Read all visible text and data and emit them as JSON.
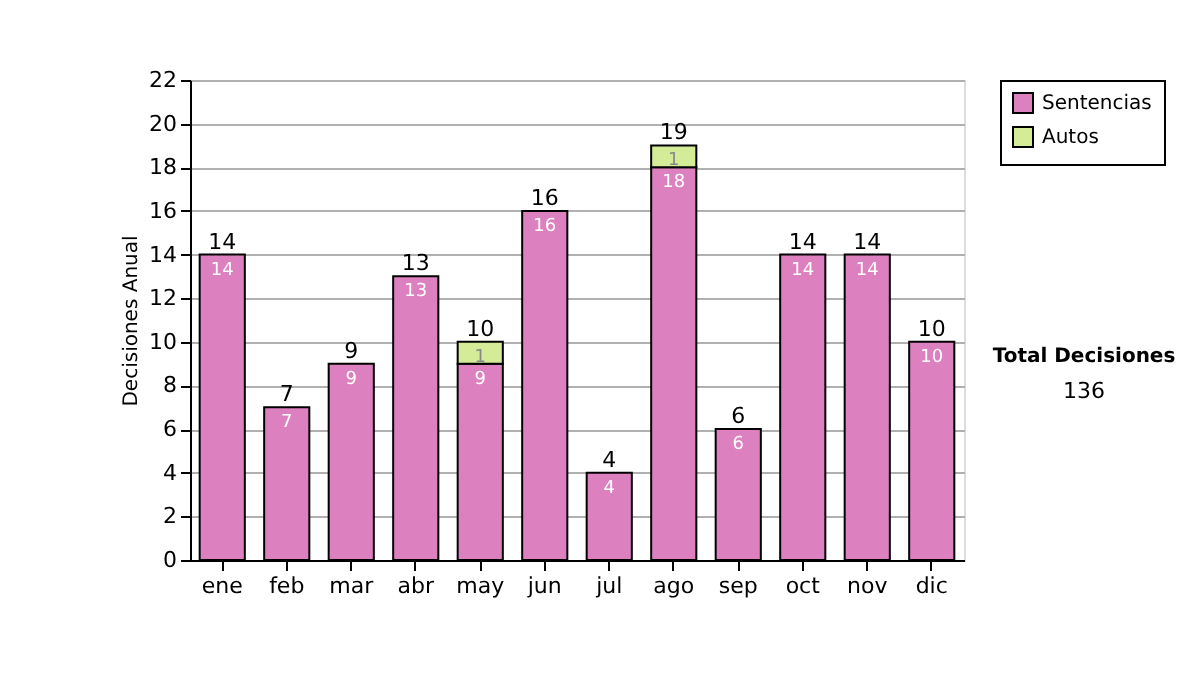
{
  "chart_data": {
    "type": "bar",
    "stacked": true,
    "ylabel": "Decisiones Anual",
    "categories": [
      "ene",
      "feb",
      "mar",
      "abr",
      "may",
      "jun",
      "jul",
      "ago",
      "sep",
      "oct",
      "nov",
      "dic"
    ],
    "series": [
      {
        "name": "Sentencias",
        "color": "#dd80c0",
        "values": [
          14,
          7,
          9,
          13,
          9,
          16,
          4,
          18,
          6,
          14,
          14,
          10
        ]
      },
      {
        "name": "Autos",
        "color": "#d4ec98",
        "values": [
          null,
          null,
          null,
          null,
          1,
          null,
          null,
          1,
          null,
          null,
          null,
          null
        ]
      }
    ],
    "totals": [
      "14",
      "7",
      "9",
      "13",
      "10",
      "16",
      "4",
      "19",
      "6",
      "14",
      "14",
      "10"
    ],
    "data_labels": true,
    "ylim": [
      0,
      22
    ],
    "yticks": [
      0,
      2,
      4,
      6,
      8,
      10,
      12,
      14,
      16,
      18,
      20,
      22
    ],
    "grid": "y",
    "legend": "right",
    "annotations": [
      "Total Decisiones",
      "136"
    ]
  }
}
